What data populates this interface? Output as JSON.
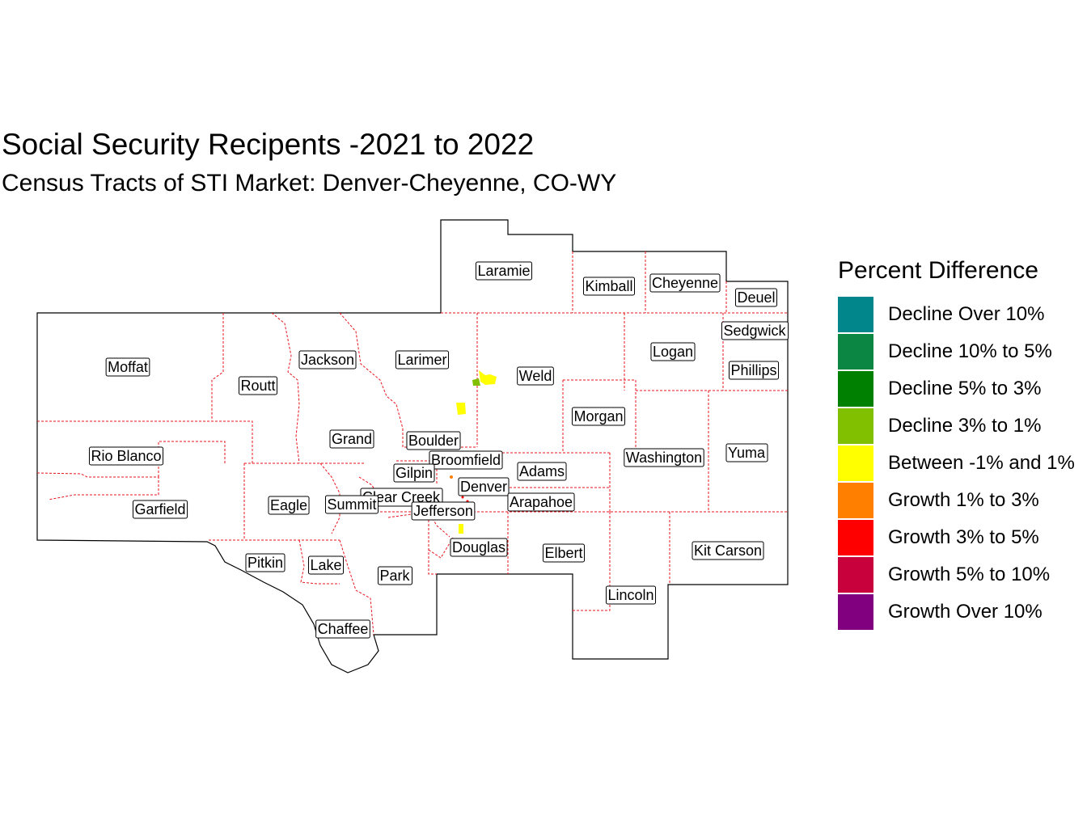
{
  "title": "Social Security Recipents -2021 to 2022",
  "subtitle": "Census Tracts of STI Market: Denver-Cheyenne, CO-WY",
  "legend": {
    "title": "Percent Difference",
    "items": [
      {
        "label": "Decline Over 10%",
        "color": "#00868B"
      },
      {
        "label": "Decline 10% to 5%",
        "color": "#0B8743"
      },
      {
        "label": "Decline 5% to 3%",
        "color": "#008000"
      },
      {
        "label": "Decline 3% to 1%",
        "color": "#80C000"
      },
      {
        "label": "Between -1% and 1%",
        "color": "#FFFF00"
      },
      {
        "label": "Growth 1% to 3%",
        "color": "#FF8000"
      },
      {
        "label": "Growth 3% to 5%",
        "color": "#FF0000"
      },
      {
        "label": "Growth 5% to 10%",
        "color": "#C8003C"
      },
      {
        "label": "Growth Over 10%",
        "color": "#800080"
      }
    ]
  },
  "counties": [
    "Laramie",
    "Kimball",
    "Cheyenne",
    "Deuel",
    "Sedgwick",
    "Moffat",
    "Jackson",
    "Larimer",
    "Weld",
    "Logan",
    "Phillips",
    "Routt",
    "Morgan",
    "Grand",
    "Boulder",
    "Rio Blanco",
    "Broomfield",
    "Washington",
    "Yuma",
    "Gilpin",
    "Adams",
    "Denver",
    "Clear Creek",
    "Eagle",
    "Summit",
    "Garfield",
    "Jefferson",
    "Arapahoe",
    "Douglas",
    "Kit Carson",
    "Elbert",
    "Pitkin",
    "Lake",
    "Park",
    "Lincoln",
    "Chaffee"
  ],
  "colors": {
    "boundary": "#000000",
    "county_lines": "#E8141E"
  }
}
